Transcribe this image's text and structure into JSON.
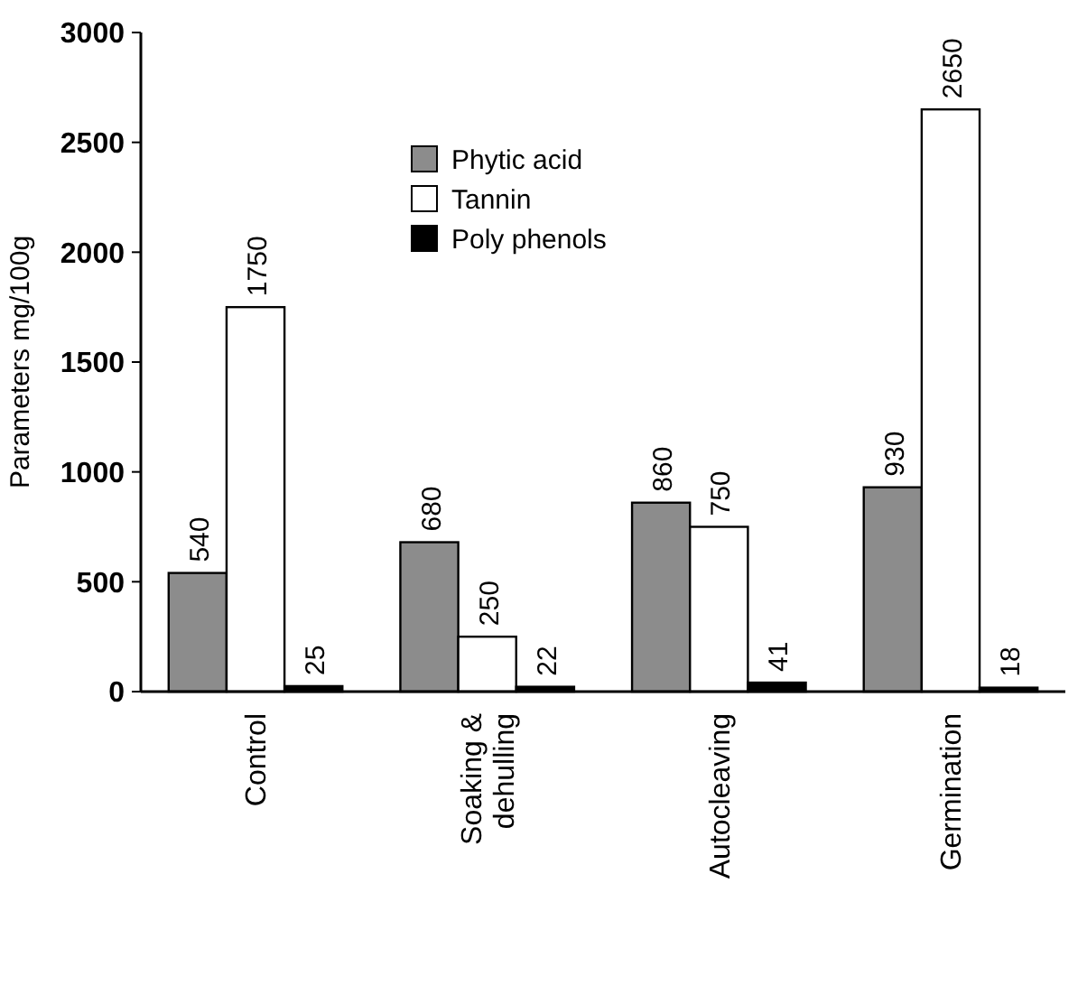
{
  "chart_data": {
    "type": "bar",
    "ylabel": "Parameters mg/100g",
    "categories": [
      "Control",
      "Soaking & dehulling",
      "Autocleaving",
      "Germination"
    ],
    "series": [
      {
        "name": "Phytic acid",
        "color": "#8c8c8c",
        "values": [
          540,
          680,
          860,
          930
        ]
      },
      {
        "name": "Tannin",
        "color": "#ffffff",
        "values": [
          1750,
          250,
          750,
          2650
        ]
      },
      {
        "name": "Poly phenols",
        "color": "#000000",
        "values": [
          25,
          22,
          41,
          18
        ]
      }
    ],
    "ylim": [
      0,
      3000
    ],
    "yticks": [
      0,
      500,
      1000,
      1500,
      2000,
      2500,
      3000
    ],
    "data_labels": true,
    "legend": "top",
    "grid": false
  }
}
